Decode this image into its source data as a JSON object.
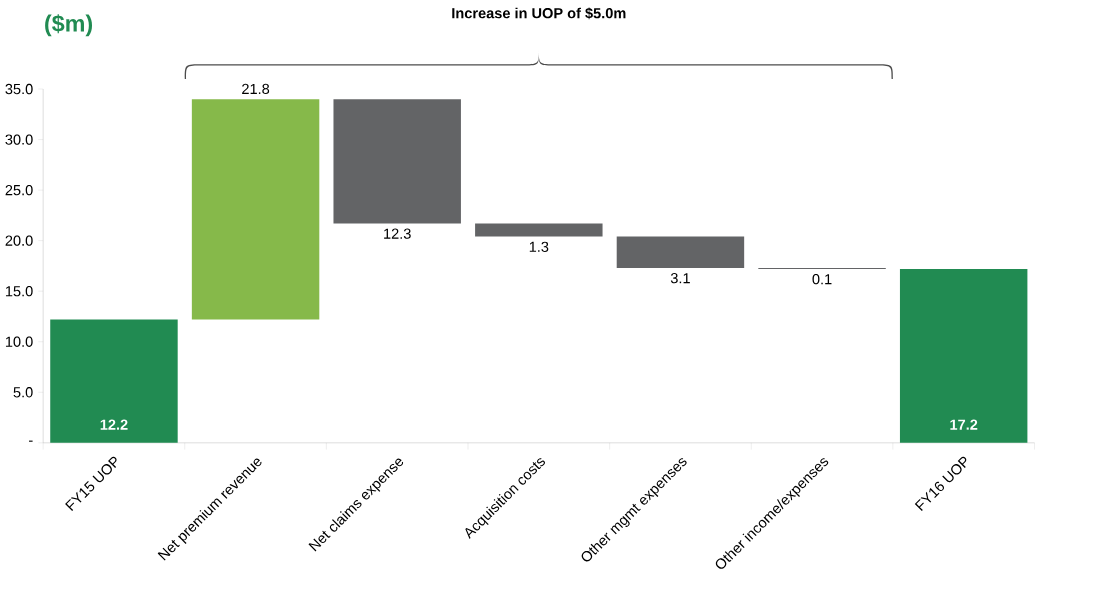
{
  "chart_data": {
    "type": "bar",
    "ylabel": "($m)",
    "annotations": [
      "Increase in UOP of $5.0m"
    ],
    "categories": [
      "FY15 UOP",
      "Net premium revenue",
      "Net claims expense",
      "Acquisition costs",
      "Other mgmt expenses",
      "Other income/expenses",
      "FY16 UOP"
    ],
    "values": [
      12.2,
      21.8,
      -12.3,
      -1.3,
      -3.1,
      -0.1,
      17.2
    ],
    "base": [
      0,
      12.2,
      34.0,
      21.7,
      20.4,
      17.3,
      0
    ],
    "colors": [
      "#218b52",
      "#86b94a",
      "#636466",
      "#636466",
      "#636466",
      "#636466",
      "#218b52"
    ],
    "value_labels": [
      "12.2",
      "21.8",
      "12.3",
      "1.3",
      "3.1",
      "0.1",
      "17.2"
    ],
    "ylim": [
      0,
      35
    ],
    "yticks": [
      {
        "value": 0,
        "label": "-"
      },
      {
        "value": 5,
        "label": "5.0"
      },
      {
        "value": 10,
        "label": "10.0"
      },
      {
        "value": 15,
        "label": "15.0"
      },
      {
        "value": 20,
        "label": "20.0"
      },
      {
        "value": 25,
        "label": "25.0"
      },
      {
        "value": 30,
        "label": "30.0"
      },
      {
        "value": 35,
        "label": "35.0"
      }
    ]
  }
}
